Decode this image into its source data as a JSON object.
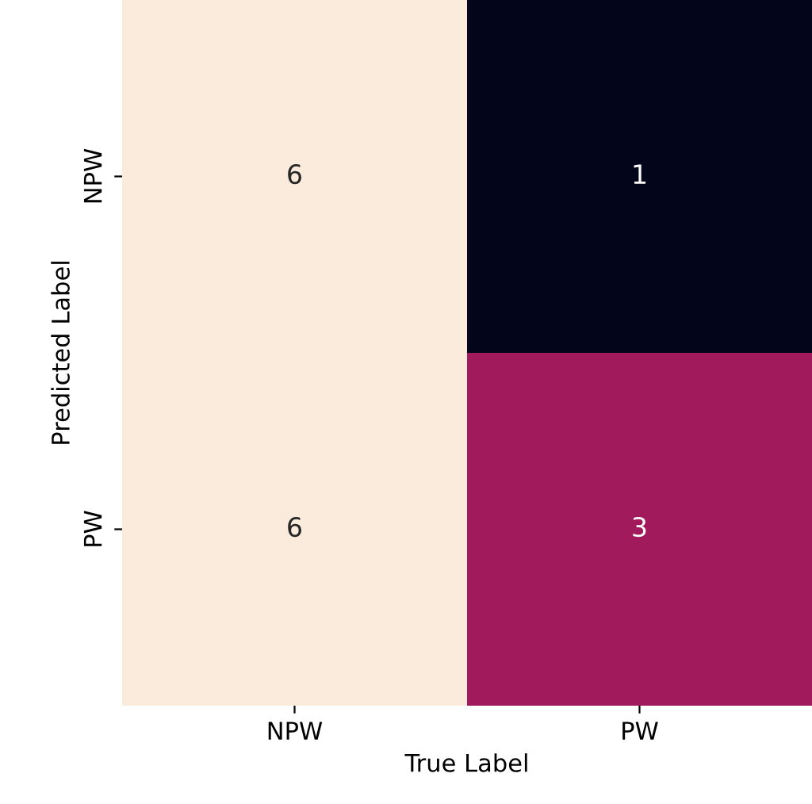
{
  "chart_data": {
    "type": "heatmap",
    "xlabel": "True Label",
    "ylabel": "Predicted Label",
    "categories": [
      "NPW",
      "PW"
    ],
    "y_categories": [
      "NPW",
      "PW"
    ],
    "cells": [
      [
        6,
        1
      ],
      [
        6,
        3
      ]
    ],
    "data_labels": true
  }
}
